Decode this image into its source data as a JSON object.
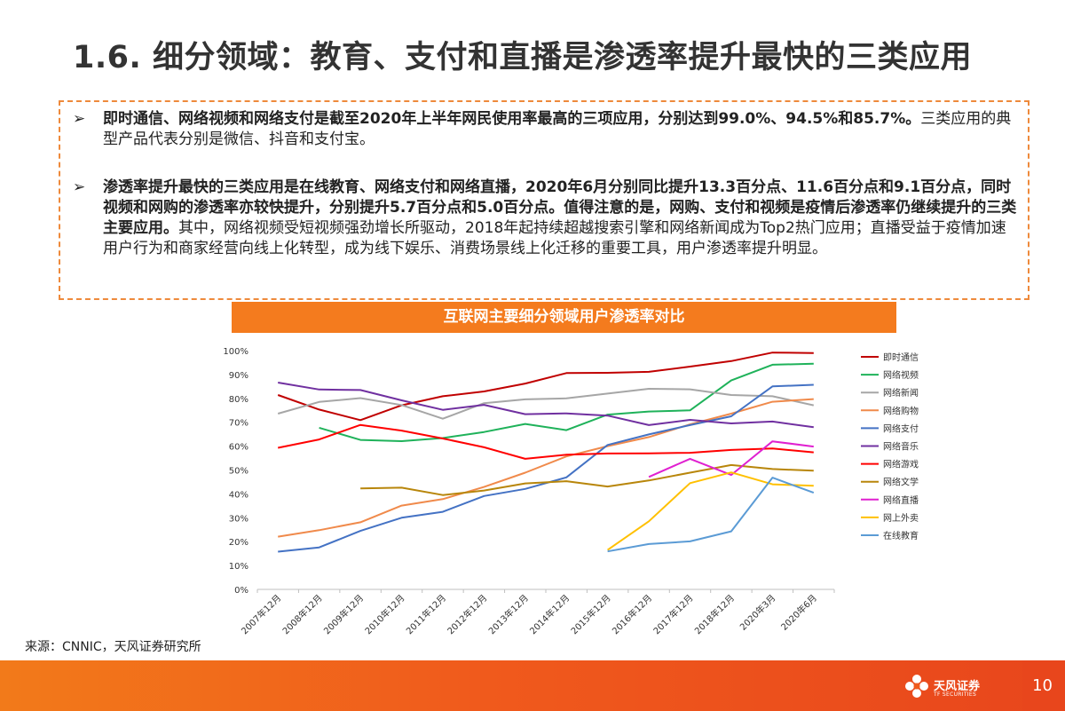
{
  "slide": {
    "title": "1.6. 细分领域：教育、支付和直播是渗透率提升最快的三类应用",
    "bullet_marker": "➢",
    "bullet1_bold": "即时通信、网络视频和网络支付是截至2020年上半年网民使用率最高的三项应用，分别达到99.0%、94.5%和85.7%。",
    "bullet1_text": "三类应用的典型产品代表分别是微信、抖音和支付宝。",
    "bullet2_bold": "渗透率提升最快的三类应用是在线教育、网络支付和网络直播，2020年6月分别同比提升13.3百分点、11.6百分点和9.1百分点，同时视频和网购的渗透率亦较快提升，分别提升5.7百分点和5.0百分点。值得注意的是，网购、支付和视频是疫情后渗透率仍继续提升的三类主要应用。",
    "bullet2_text": "其中，网络视频受短视频强劲增长所驱动，2018年起持续超越搜索引擎和网络新闻成为Top2热门应用；直播受益于疫情加速用户行为和商家经营向线上化转型，成为线下娱乐、消费场景线上化迁移的重要工具，用户渗透率提升明显。",
    "chart_banner": "互联网主要细分领域用户渗透率对比",
    "source": "来源：CNNIC，天风证券研究所",
    "logo_name": "天风证券",
    "logo_sub": "TF SECURITIES",
    "page_number": "10"
  },
  "colors": {
    "accent": "#f47b1e",
    "footer": "#f05a1c"
  },
  "chart_data": {
    "type": "line",
    "title": "",
    "xlabel": "",
    "ylabel": "",
    "ylim": [
      0,
      100
    ],
    "yticks": [
      "0%",
      "10%",
      "20%",
      "30%",
      "40%",
      "50%",
      "60%",
      "70%",
      "80%",
      "90%",
      "100%"
    ],
    "categories": [
      "2007年12月",
      "2008年12月",
      "2009年12月",
      "2010年12月",
      "2011年12月",
      "2012年12月",
      "2013年12月",
      "2014年12月",
      "2015年12月",
      "2016年12月",
      "2017年12月",
      "2018年12月",
      "2020年3月",
      "2020年6月"
    ],
    "legend_position": "right",
    "grid": false,
    "series": [
      {
        "name": "即时通信",
        "color": "#c00000",
        "values": [
          81.4,
          75.3,
          70.9,
          77.1,
          80.9,
          82.9,
          86.2,
          90.6,
          90.7,
          91.1,
          93.3,
          95.6,
          99.2,
          99.0
        ]
      },
      {
        "name": "网络视频",
        "color": "#1fb25a",
        "values": [
          null,
          67.7,
          62.6,
          62.1,
          63.4,
          65.9,
          69.3,
          66.7,
          73.2,
          74.5,
          75.0,
          87.5,
          94.1,
          94.5
        ]
      },
      {
        "name": "网络新闻",
        "color": "#a6a6a6",
        "values": [
          73.6,
          78.5,
          80.1,
          77.2,
          71.5,
          78.0,
          79.6,
          80.0,
          82.0,
          84.0,
          83.8,
          81.4,
          80.9,
          77.1
        ]
      },
      {
        "name": "网络购物",
        "color": "#f08a4b",
        "values": [
          22.1,
          24.8,
          28.1,
          35.1,
          37.8,
          42.9,
          48.9,
          55.7,
          60.0,
          63.8,
          69.1,
          73.6,
          78.6,
          79.7
        ]
      },
      {
        "name": "网络支付",
        "color": "#4472c4",
        "values": [
          15.8,
          17.6,
          24.5,
          30.0,
          32.5,
          39.1,
          42.1,
          46.9,
          60.5,
          64.9,
          68.8,
          72.5,
          85.0,
          85.7
        ]
      },
      {
        "name": "网络音乐",
        "color": "#7030a0",
        "values": [
          86.6,
          83.7,
          83.5,
          79.2,
          75.2,
          77.3,
          73.4,
          73.7,
          72.8,
          68.8,
          71.0,
          69.5,
          70.3,
          67.9
        ]
      },
      {
        "name": "网络游戏",
        "color": "#ff0000",
        "values": [
          59.3,
          62.8,
          68.9,
          66.5,
          63.2,
          59.5,
          54.7,
          56.4,
          56.9,
          57.0,
          57.2,
          58.4,
          59.0,
          57.4
        ]
      },
      {
        "name": "网络文学",
        "color": "#b8860b",
        "values": [
          null,
          null,
          42.3,
          42.6,
          39.5,
          41.4,
          44.4,
          45.3,
          43.1,
          45.6,
          48.9,
          52.1,
          50.4,
          49.7
        ]
      },
      {
        "name": "网络直播",
        "color": "#e020d0",
        "values": [
          null,
          null,
          null,
          null,
          null,
          null,
          null,
          null,
          null,
          47.1,
          54.7,
          47.9,
          62.0,
          59.8
        ]
      },
      {
        "name": "网上外卖",
        "color": "#ffc000",
        "values": [
          null,
          null,
          null,
          null,
          null,
          null,
          null,
          null,
          16.5,
          28.5,
          44.5,
          49.0,
          44.0,
          43.4
        ]
      },
      {
        "name": "在线教育",
        "color": "#5b9bd5",
        "values": [
          null,
          null,
          null,
          null,
          null,
          null,
          null,
          null,
          15.9,
          19.0,
          20.1,
          24.3,
          46.8,
          40.5
        ]
      }
    ]
  }
}
